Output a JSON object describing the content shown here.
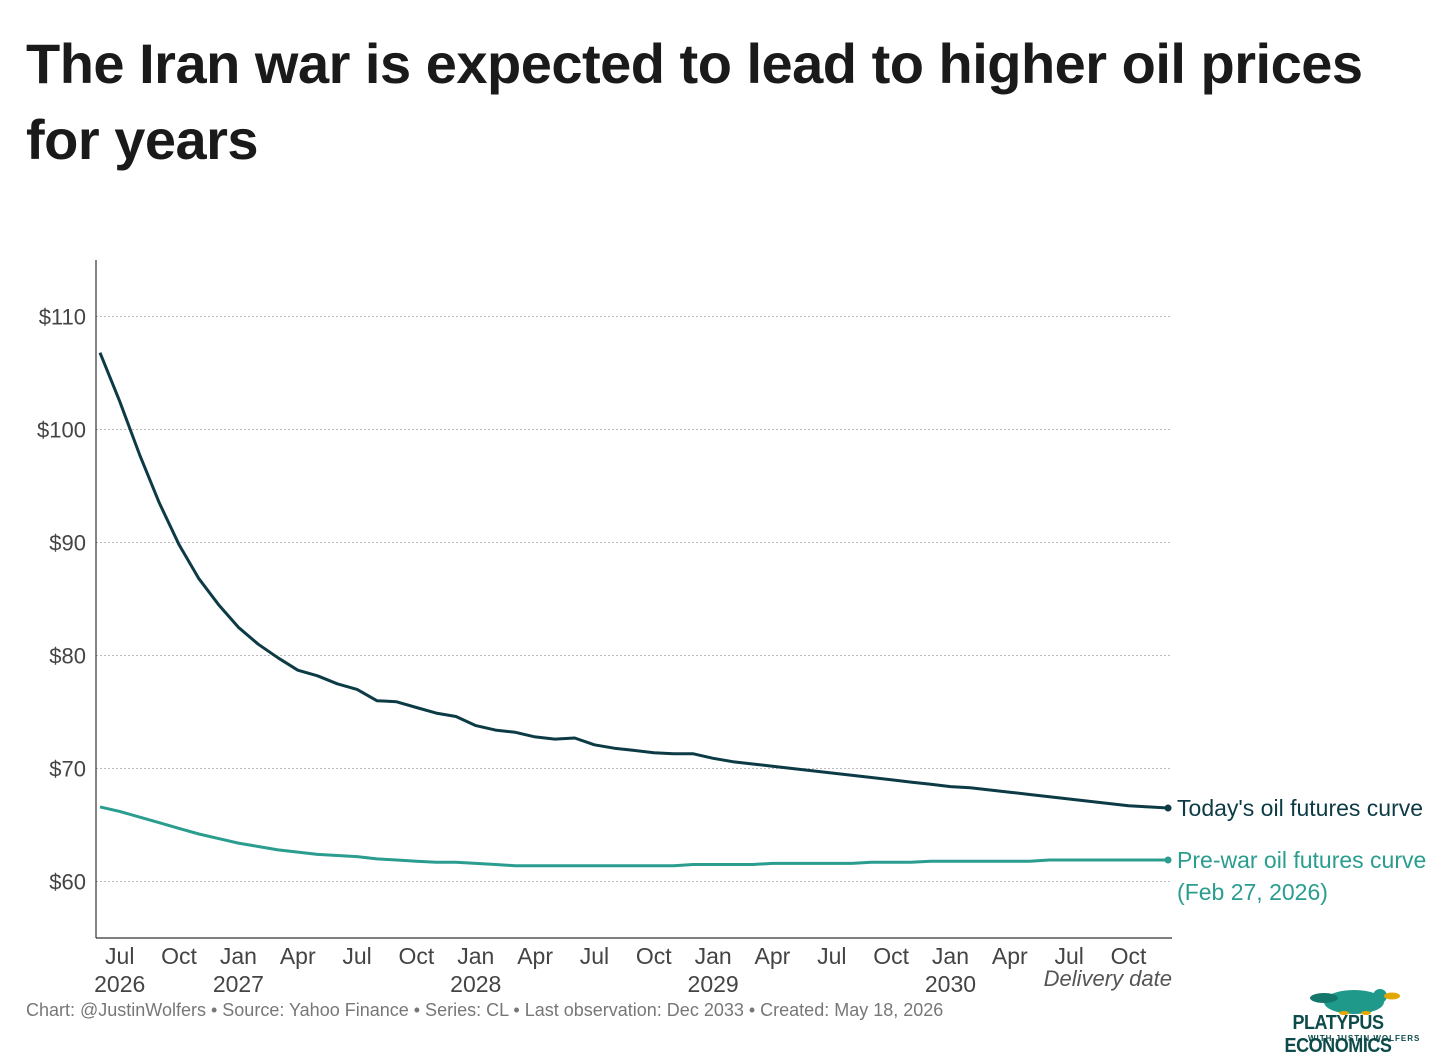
{
  "title": "The Iran war is expected to lead to higher oil prices for years",
  "footer": "Chart: @JustinWolfers • Source: Yahoo Finance • Series: CL • Last observation: Dec 2033 • Created: May 18, 2026",
  "logo": {
    "main": "PLATYPUS ECONOMICS",
    "sub": "WITH JUSTIN WOLFERS",
    "icon": "platypus-icon"
  },
  "colors": {
    "today": "#0d3b45",
    "prewar": "#2a9d8f",
    "grid": "#bbbbbb",
    "axis": "#333333"
  },
  "chart_data": {
    "type": "line",
    "xlabel": "Delivery date",
    "ylabel": "",
    "ylim": [
      55,
      115
    ],
    "yticks": [
      60,
      70,
      80,
      90,
      100,
      110
    ],
    "ytick_labels": [
      "$60",
      "$70",
      "$80",
      "$90",
      "$100",
      "$110"
    ],
    "grid": true,
    "xticks": [
      {
        "month": "2026-07",
        "label": "Jul",
        "year": "2026"
      },
      {
        "month": "2026-10",
        "label": "Oct",
        "year": ""
      },
      {
        "month": "2027-01",
        "label": "Jan",
        "year": "2027"
      },
      {
        "month": "2027-04",
        "label": "Apr",
        "year": ""
      },
      {
        "month": "2027-07",
        "label": "Jul",
        "year": ""
      },
      {
        "month": "2027-10",
        "label": "Oct",
        "year": ""
      },
      {
        "month": "2028-01",
        "label": "Jan",
        "year": "2028"
      },
      {
        "month": "2028-04",
        "label": "Apr",
        "year": ""
      },
      {
        "month": "2028-07",
        "label": "Jul",
        "year": ""
      },
      {
        "month": "2028-10",
        "label": "Oct",
        "year": ""
      },
      {
        "month": "2029-01",
        "label": "Jan",
        "year": "2029"
      },
      {
        "month": "2029-04",
        "label": "Apr",
        "year": ""
      },
      {
        "month": "2029-07",
        "label": "Jul",
        "year": ""
      },
      {
        "month": "2029-10",
        "label": "Oct",
        "year": ""
      },
      {
        "month": "2030-01",
        "label": "Jan",
        "year": "2030"
      },
      {
        "month": "2030-04",
        "label": "Apr",
        "year": ""
      },
      {
        "month": "2030-07",
        "label": "Jul",
        "year": ""
      },
      {
        "month": "2030-10",
        "label": "Oct",
        "year": ""
      }
    ],
    "xlim": [
      "2026-06",
      "2030-12"
    ],
    "series": [
      {
        "name": "Today's oil futures curve",
        "label_lines": [
          "Today's oil futures curve"
        ],
        "x": [
          "2026-06",
          "2026-07",
          "2026-08",
          "2026-09",
          "2026-10",
          "2026-11",
          "2026-12",
          "2027-01",
          "2027-02",
          "2027-03",
          "2027-04",
          "2027-05",
          "2027-06",
          "2027-07",
          "2027-08",
          "2027-09",
          "2027-10",
          "2027-11",
          "2027-12",
          "2028-01",
          "2028-02",
          "2028-03",
          "2028-04",
          "2028-05",
          "2028-06",
          "2028-07",
          "2028-08",
          "2028-09",
          "2028-10",
          "2028-11",
          "2028-12",
          "2029-01",
          "2029-02",
          "2029-03",
          "2029-04",
          "2029-05",
          "2029-06",
          "2029-07",
          "2029-08",
          "2029-09",
          "2029-10",
          "2029-11",
          "2029-12",
          "2030-01",
          "2030-02",
          "2030-03",
          "2030-04",
          "2030-05",
          "2030-06",
          "2030-07",
          "2030-08",
          "2030-09",
          "2030-10",
          "2030-11",
          "2030-12"
        ],
        "values": [
          106.8,
          102.5,
          97.8,
          93.5,
          89.8,
          86.8,
          84.5,
          82.5,
          81.0,
          79.8,
          78.7,
          78.2,
          77.5,
          77.0,
          76.0,
          75.9,
          75.4,
          74.9,
          74.6,
          73.8,
          73.4,
          73.2,
          72.8,
          72.6,
          72.7,
          72.1,
          71.8,
          71.6,
          71.4,
          71.3,
          71.3,
          70.9,
          70.6,
          70.4,
          70.2,
          70.0,
          69.8,
          69.6,
          69.4,
          69.2,
          69.0,
          68.8,
          68.6,
          68.4,
          68.3,
          68.1,
          67.9,
          67.7,
          67.5,
          67.3,
          67.1,
          66.9,
          66.7,
          66.6,
          66.5
        ]
      },
      {
        "name": "Pre-war oil futures curve (Feb 27, 2026)",
        "label_lines": [
          "Pre-war oil futures curve",
          "(Feb 27, 2026)"
        ],
        "x": [
          "2026-06",
          "2026-07",
          "2026-08",
          "2026-09",
          "2026-10",
          "2026-11",
          "2026-12",
          "2027-01",
          "2027-02",
          "2027-03",
          "2027-04",
          "2027-05",
          "2027-06",
          "2027-07",
          "2027-08",
          "2027-09",
          "2027-10",
          "2027-11",
          "2027-12",
          "2028-01",
          "2028-02",
          "2028-03",
          "2028-04",
          "2028-05",
          "2028-06",
          "2028-07",
          "2028-08",
          "2028-09",
          "2028-10",
          "2028-11",
          "2028-12",
          "2029-01",
          "2029-02",
          "2029-03",
          "2029-04",
          "2029-05",
          "2029-06",
          "2029-07",
          "2029-08",
          "2029-09",
          "2029-10",
          "2029-11",
          "2029-12",
          "2030-01",
          "2030-02",
          "2030-03",
          "2030-04",
          "2030-05",
          "2030-06",
          "2030-07",
          "2030-08",
          "2030-09",
          "2030-10",
          "2030-11",
          "2030-12"
        ],
        "values": [
          66.6,
          66.2,
          65.7,
          65.2,
          64.7,
          64.2,
          63.8,
          63.4,
          63.1,
          62.8,
          62.6,
          62.4,
          62.3,
          62.2,
          62.0,
          61.9,
          61.8,
          61.7,
          61.7,
          61.6,
          61.5,
          61.4,
          61.4,
          61.4,
          61.4,
          61.4,
          61.4,
          61.4,
          61.4,
          61.4,
          61.5,
          61.5,
          61.5,
          61.5,
          61.6,
          61.6,
          61.6,
          61.6,
          61.6,
          61.7,
          61.7,
          61.7,
          61.8,
          61.8,
          61.8,
          61.8,
          61.8,
          61.8,
          61.9,
          61.9,
          61.9,
          61.9,
          61.9,
          61.9,
          61.9
        ]
      }
    ]
  }
}
